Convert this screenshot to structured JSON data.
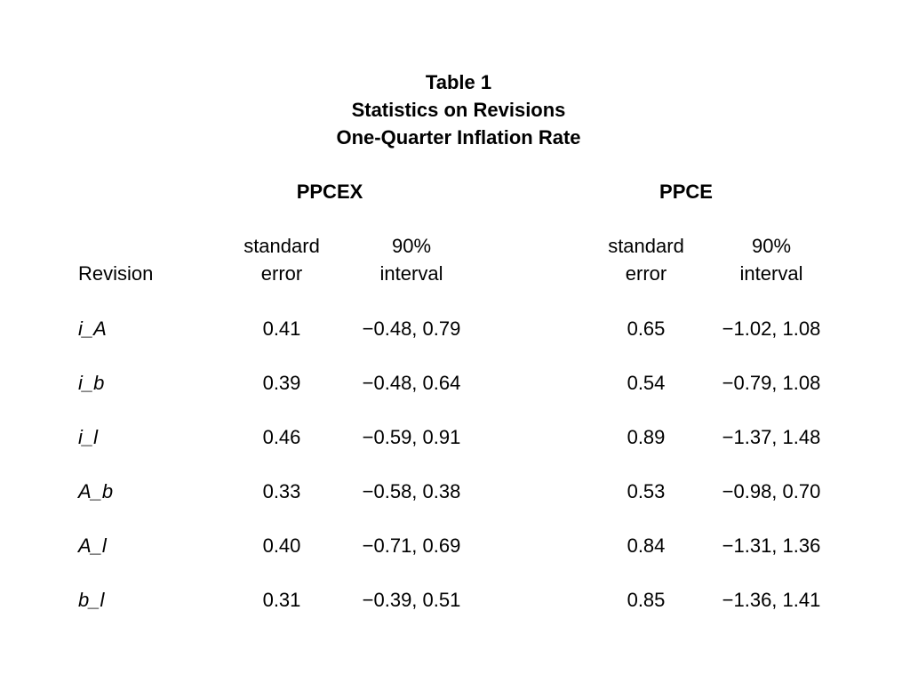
{
  "title": {
    "line1": "Table 1",
    "line2": "Statistics on Revisions",
    "line3": "One-Quarter Inflation Rate"
  },
  "groups": {
    "ppcex": "PPCEX",
    "ppce": "PPCE"
  },
  "headers": {
    "revision": "Revision",
    "se_top": "standard",
    "se_bottom": "error",
    "int_top": "90%",
    "int_bottom": "interval"
  },
  "rows": [
    {
      "label": "i_A",
      "ppcex_se": "0.41",
      "ppcex_int": "−0.48, 0.79",
      "ppce_se": "0.65",
      "ppce_int": "−1.02, 1.08"
    },
    {
      "label": "i_b",
      "ppcex_se": "0.39",
      "ppcex_int": "−0.48, 0.64",
      "ppce_se": "0.54",
      "ppce_int": "−0.79, 1.08"
    },
    {
      "label": "i_l",
      "ppcex_se": "0.46",
      "ppcex_int": "−0.59, 0.91",
      "ppce_se": "0.89",
      "ppce_int": "−1.37, 1.48"
    },
    {
      "label": "A_b",
      "ppcex_se": "0.33",
      "ppcex_int": "−0.58, 0.38",
      "ppce_se": "0.53",
      "ppce_int": "−0.98, 0.70"
    },
    {
      "label": "A_l",
      "ppcex_se": "0.40",
      "ppcex_int": "−0.71, 0.69",
      "ppce_se": "0.84",
      "ppce_int": "−1.31, 1.36"
    },
    {
      "label": "b_l",
      "ppcex_se": "0.31",
      "ppcex_int": "−0.39, 0.51",
      "ppce_se": "0.85",
      "ppce_int": "−1.36, 1.41"
    }
  ]
}
